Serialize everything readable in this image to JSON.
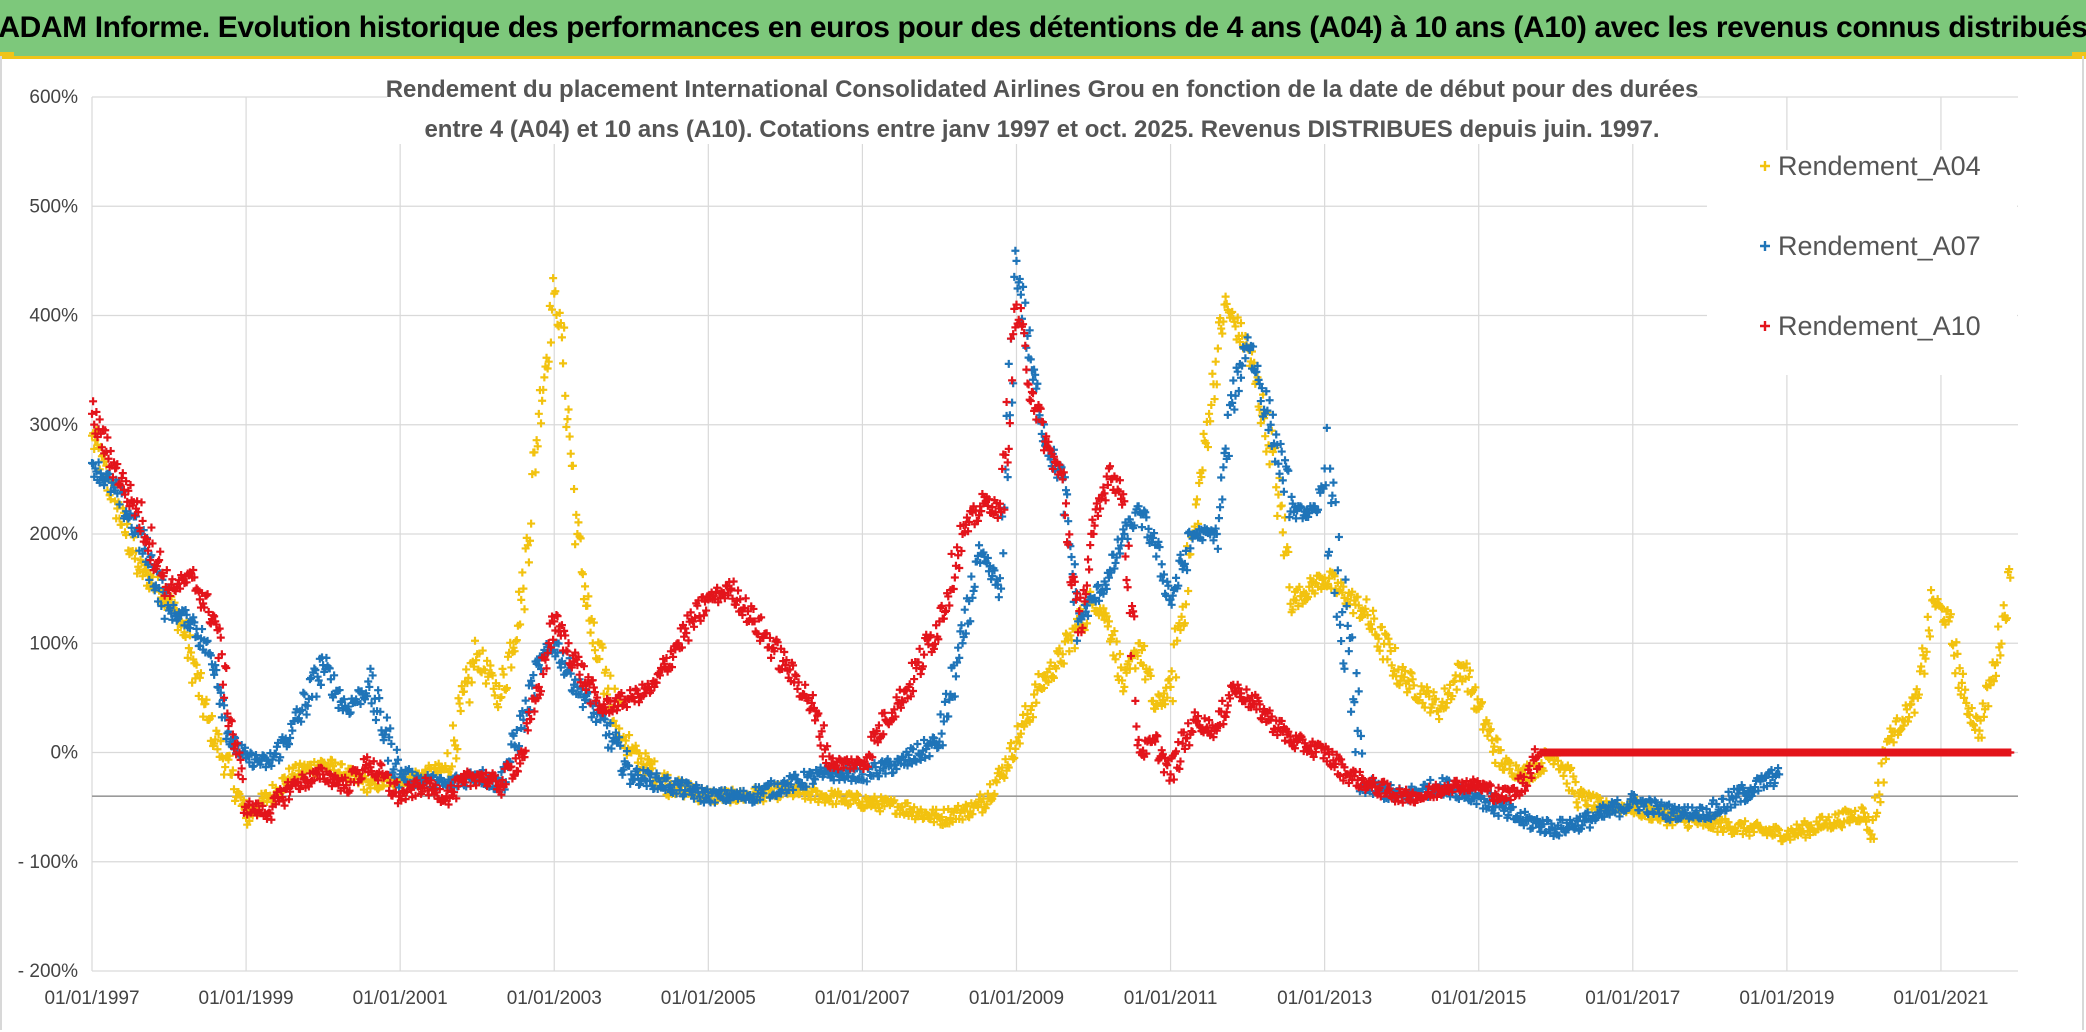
{
  "header": {
    "title": "ADAM Informe. Evolution historique des performances en euros pour des détentions de 4 ans (A04) à 10 ans (A10) avec les revenus connus distribués"
  },
  "colors": {
    "header_bg": "#7dc87b",
    "accent": "#f0c419",
    "A04": "#f2c20f",
    "A07": "#1f74b8",
    "A10": "#e3141b",
    "grid": "#d9d9d9"
  },
  "chart_data": {
    "type": "scatter",
    "title_line1": "Rendement du placement International Consolidated Airlines Grou en fonction de la date de début pour des durées",
    "title_line2": "entre 4 (A04) et 10 ans (A10). Cotations entre janv 1997 et oct. 2025. Revenus DISTRIBUES depuis juin. 1997.",
    "x_ticks": [
      "01/01/1997",
      "01/01/1999",
      "01/01/2001",
      "01/01/2003",
      "01/01/2005",
      "01/01/2007",
      "01/01/2009",
      "01/01/2011",
      "01/01/2013",
      "01/01/2015",
      "01/01/2017",
      "01/01/2019",
      "01/01/2021"
    ],
    "x_tick_years": [
      1997,
      1999,
      2001,
      2003,
      2005,
      2007,
      2009,
      2011,
      2013,
      2015,
      2017,
      2019,
      2021
    ],
    "xlim": [
      1997,
      2022
    ],
    "y_ticks": [
      "600%",
      "500%",
      "400%",
      "300%",
      "200%",
      "100%",
      "0%",
      "- 100%",
      "- 200%"
    ],
    "y_tick_values": [
      600,
      500,
      400,
      300,
      200,
      100,
      0,
      -100,
      -200
    ],
    "ylim": [
      -200,
      600
    ],
    "reference_line": -40,
    "marker": "+",
    "series": [
      {
        "name": "Rendement_A04",
        "x": [
          1997.0,
          1997.3,
          1997.6,
          1998.0,
          1998.2,
          1998.5,
          1998.8,
          1999.0,
          1999.3,
          1999.6,
          2000.0,
          2000.3,
          2000.6,
          2001.0,
          2001.3,
          2001.6,
          2002.0,
          2002.3,
          2002.6,
          2002.8,
          2003.0,
          2003.1,
          2003.3,
          2003.5,
          2004.0,
          2004.5,
          2005.0,
          2005.5,
          2006.0,
          2006.5,
          2007.0,
          2007.5,
          2008.0,
          2008.5,
          2008.8,
          2009.0,
          2009.3,
          2009.6,
          2010.0,
          2010.2,
          2010.4,
          2010.6,
          2010.8,
          2011.0,
          2011.3,
          2011.5,
          2011.7,
          2012.0,
          2012.3,
          2012.6,
          2013.0,
          2013.5,
          2014.0,
          2014.5,
          2014.8,
          2015.0,
          2015.3,
          2015.6,
          2016.0,
          2016.3,
          2016.6,
          2017.0,
          2017.5,
          2018.0,
          2018.5,
          2019.0,
          2019.5,
          2020.0,
          2020.1,
          2020.3,
          2020.5,
          2020.7,
          2020.9,
          2021.1,
          2021.3,
          2021.5,
          2021.7,
          2021.9
        ],
        "values": [
          290,
          230,
          170,
          140,
          110,
          30,
          -20,
          -60,
          -40,
          -20,
          -10,
          -20,
          -30,
          -25,
          -20,
          -15,
          90,
          50,
          150,
          310,
          420,
          380,
          200,
          100,
          0,
          -30,
          -40,
          -40,
          -35,
          -40,
          -45,
          -50,
          -60,
          -50,
          -20,
          10,
          60,
          90,
          140,
          120,
          60,
          100,
          40,
          60,
          200,
          310,
          410,
          370,
          280,
          140,
          160,
          130,
          70,
          40,
          80,
          40,
          -10,
          -20,
          0,
          -40,
          -50,
          -50,
          -60,
          -65,
          -70,
          -75,
          -65,
          -55,
          -75,
          10,
          30,
          50,
          140,
          120,
          50,
          20,
          80,
          160
        ]
      },
      {
        "name": "Rendement_A07",
        "x": [
          1997.0,
          1997.3,
          1997.6,
          1998.0,
          1998.3,
          1998.6,
          1998.8,
          1999.0,
          1999.3,
          1999.6,
          2000.0,
          2000.3,
          2000.6,
          2001.0,
          2001.3,
          2001.6,
          2002.0,
          2002.3,
          2002.6,
          2002.8,
          2003.0,
          2003.3,
          2003.6,
          2004.0,
          2004.5,
          2005.0,
          2005.5,
          2006.0,
          2006.5,
          2007.0,
          2007.5,
          2008.0,
          2008.3,
          2008.5,
          2008.8,
          2009.0,
          2009.2,
          2009.4,
          2009.6,
          2009.8,
          2010.0,
          2010.2,
          2010.4,
          2010.6,
          2010.8,
          2011.0,
          2011.3,
          2011.6,
          2011.8,
          2012.0,
          2012.3,
          2012.6,
          2012.9,
          2013.0,
          2013.5,
          2014.0,
          2014.5,
          2015.0,
          2015.5,
          2016.0,
          2016.5,
          2017.0,
          2017.5,
          2018.0,
          2018.5,
          2018.9
        ],
        "values": [
          265,
          240,
          200,
          130,
          120,
          80,
          10,
          -5,
          -10,
          20,
          80,
          40,
          60,
          -20,
          -25,
          -30,
          -20,
          -30,
          30,
          80,
          100,
          60,
          30,
          -20,
          -30,
          -40,
          -40,
          -30,
          -20,
          -20,
          -10,
          10,
          100,
          180,
          150,
          450,
          350,
          280,
          250,
          120,
          140,
          160,
          200,
          220,
          190,
          140,
          200,
          200,
          320,
          380,
          300,
          220,
          220,
          260,
          -30,
          -40,
          -30,
          -40,
          -60,
          -70,
          -60,
          -45,
          -55,
          -55,
          -35,
          -20
        ]
      },
      {
        "name": "Rendement_A10",
        "x": [
          1997.0,
          1997.3,
          1997.6,
          1998.0,
          1998.3,
          1998.6,
          1998.8,
          1999.0,
          1999.3,
          1999.6,
          2000.0,
          2000.3,
          2000.6,
          2001.0,
          2001.3,
          2001.6,
          2002.0,
          2002.3,
          2002.6,
          2002.8,
          2003.0,
          2003.3,
          2003.6,
          2004.0,
          2004.3,
          2004.6,
          2005.0,
          2005.3,
          2005.6,
          2006.0,
          2006.3,
          2006.6,
          2007.0,
          2007.3,
          2007.6,
          2008.0,
          2008.3,
          2008.6,
          2008.8,
          2009.0,
          2009.2,
          2009.4,
          2009.6,
          2009.8,
          2010.0,
          2010.2,
          2010.4,
          2010.6,
          2010.8,
          2011.0,
          2011.3,
          2011.6,
          2011.8,
          2012.0,
          2012.3,
          2012.6,
          2013.0,
          2013.3,
          2013.6,
          2014.0,
          2014.3,
          2014.6,
          2015.0,
          2015.3,
          2015.5,
          2015.8,
          2016.5,
          2017.5,
          2018.5,
          2019.5,
          2020.5,
          2021.5,
          2021.9
        ],
        "values": [
          310,
          260,
          220,
          150,
          160,
          120,
          30,
          -50,
          -55,
          -30,
          -20,
          -30,
          -10,
          -40,
          -30,
          -40,
          -20,
          -30,
          0,
          60,
          120,
          80,
          40,
          50,
          60,
          100,
          140,
          150,
          120,
          80,
          50,
          -10,
          -10,
          30,
          60,
          120,
          200,
          230,
          220,
          410,
          330,
          280,
          250,
          110,
          200,
          260,
          230,
          0,
          10,
          -20,
          30,
          20,
          60,
          50,
          30,
          10,
          0,
          -20,
          -30,
          -40,
          -40,
          -30,
          -30,
          -40,
          -35,
          0,
          0,
          0,
          0,
          0,
          0,
          0,
          0
        ]
      }
    ],
    "legend": [
      "Rendement_A04",
      "Rendement_A07",
      "Rendement_A10"
    ],
    "legend_position": "top-right"
  }
}
